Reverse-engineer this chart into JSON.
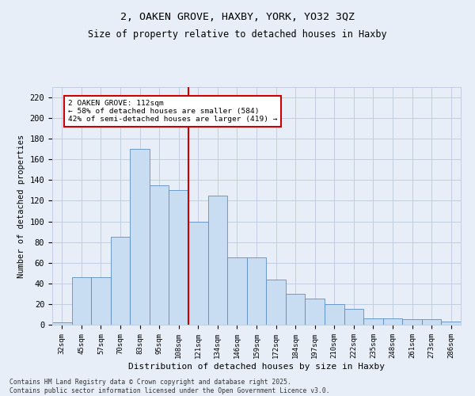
{
  "title_line1": "2, OAKEN GROVE, HAXBY, YORK, YO32 3QZ",
  "title_line2": "Size of property relative to detached houses in Haxby",
  "xlabel": "Distribution of detached houses by size in Haxby",
  "ylabel": "Number of detached properties",
  "categories": [
    "32sqm",
    "45sqm",
    "57sqm",
    "70sqm",
    "83sqm",
    "95sqm",
    "108sqm",
    "121sqm",
    "134sqm",
    "146sqm",
    "159sqm",
    "172sqm",
    "184sqm",
    "197sqm",
    "210sqm",
    "222sqm",
    "235sqm",
    "248sqm",
    "261sqm",
    "273sqm",
    "286sqm"
  ],
  "values": [
    2,
    46,
    46,
    85,
    170,
    135,
    130,
    100,
    125,
    65,
    65,
    44,
    30,
    25,
    20,
    15,
    6,
    6,
    5,
    5,
    3
  ],
  "bar_color": "#c9ddf2",
  "bar_edge_color": "#5b8ec4",
  "bar_width": 1.0,
  "marker_color": "#cc0000",
  "annotation_label": "2 OAKEN GROVE: 112sqm",
  "annotation_line1": "← 58% of detached houses are smaller (584)",
  "annotation_line2": "42% of semi-detached houses are larger (419) →",
  "annotation_box_color": "#ffffff",
  "annotation_box_edge": "#cc0000",
  "ylim": [
    0,
    230
  ],
  "yticks": [
    0,
    20,
    40,
    60,
    80,
    100,
    120,
    140,
    160,
    180,
    200,
    220
  ],
  "grid_color": "#c0cfe0",
  "background_color": "#e8eef8",
  "footer_line1": "Contains HM Land Registry data © Crown copyright and database right 2025.",
  "footer_line2": "Contains public sector information licensed under the Open Government Licence v3.0."
}
